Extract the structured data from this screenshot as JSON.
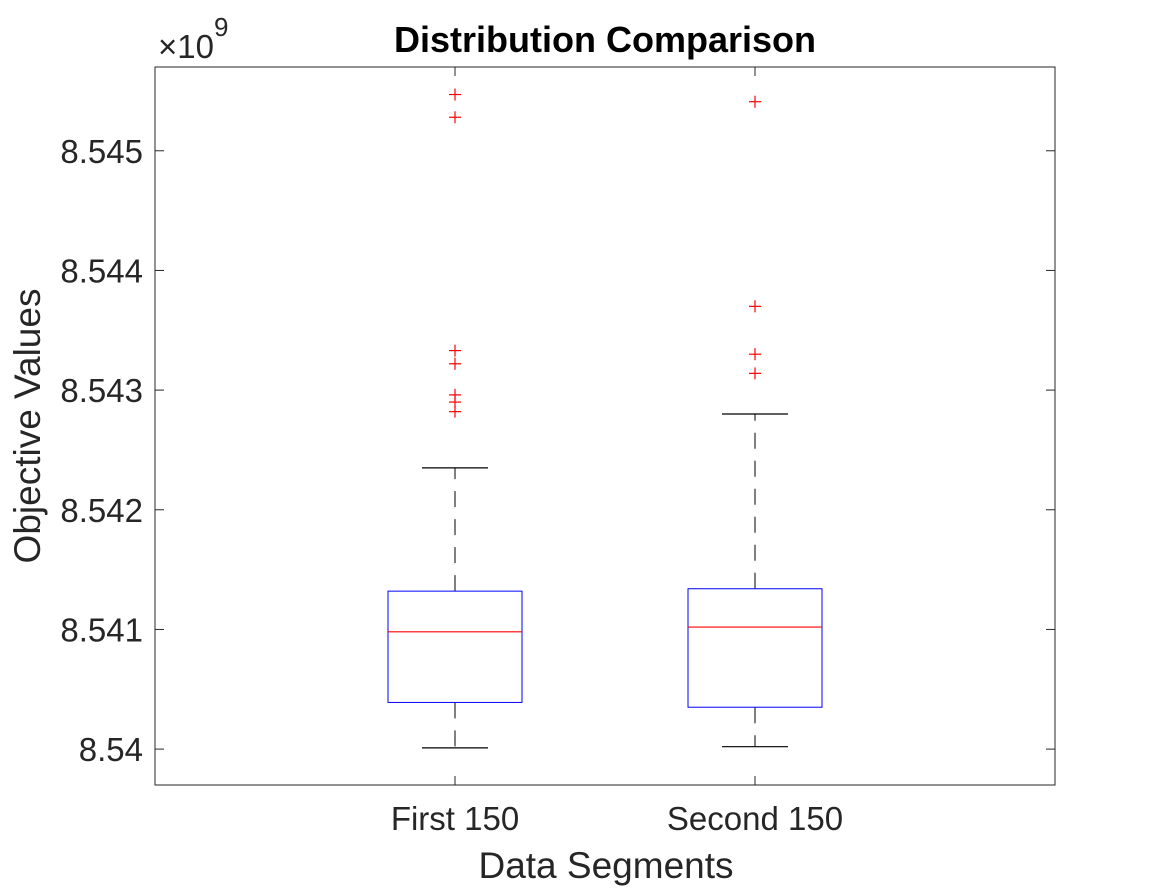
{
  "chart_data": {
    "type": "box",
    "title": "Distribution Comparison",
    "xlabel": "Data Segments",
    "ylabel": "Objective Values",
    "y_exponent_multiplier": "×10",
    "y_exponent_power": "9",
    "categories": [
      "First 150",
      "Second 150"
    ],
    "ylim": [
      8.5397,
      8.5457
    ],
    "yticks": [
      8.54,
      8.541,
      8.542,
      8.543,
      8.544,
      8.545
    ],
    "ytick_labels": [
      "8.54",
      "8.541",
      "8.542",
      "8.543",
      "8.544",
      "8.545"
    ],
    "boxes": [
      {
        "name": "First 150",
        "whisker_low": 8.54001,
        "q1": 8.54039,
        "median": 8.54098,
        "q3": 8.54132,
        "whisker_high": 8.54235,
        "outliers": [
          8.54282,
          8.5429,
          8.54296,
          8.54322,
          8.54333,
          8.54528,
          8.54547
        ]
      },
      {
        "name": "Second 150",
        "whisker_low": 8.54002,
        "q1": 8.54035,
        "median": 8.54102,
        "q3": 8.54134,
        "whisker_high": 8.5428,
        "outliers": [
          8.54314,
          8.5433,
          8.5437,
          8.54541
        ]
      }
    ],
    "colors": {
      "box": "#0000ff",
      "median": "#ff0000",
      "whisker": "#000000",
      "outlier": "#ff0000",
      "axes": "#262626"
    },
    "grid": false,
    "legend": "none"
  }
}
